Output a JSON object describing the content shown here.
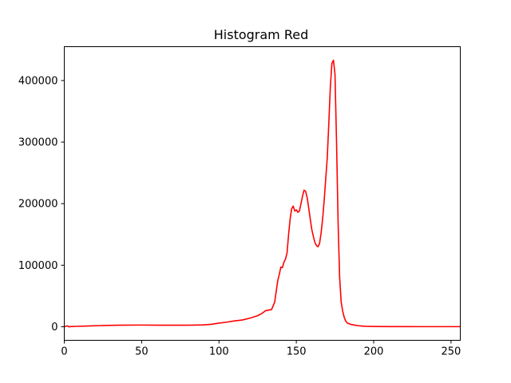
{
  "chart_data": {
    "type": "line",
    "title": "Histogram Red",
    "xlabel": "",
    "ylabel": "",
    "xlim": [
      0,
      256
    ],
    "ylim": [
      -22000,
      455000
    ],
    "xticks": [
      0,
      50,
      100,
      150,
      200,
      250
    ],
    "yticks": [
      0,
      100000,
      200000,
      300000,
      400000
    ],
    "xtick_labels": [
      "0",
      "50",
      "100",
      "150",
      "200",
      "250"
    ],
    "ytick_labels": [
      "0",
      "100000",
      "200000",
      "300000",
      "400000"
    ],
    "grid": false,
    "legend": "none",
    "series": [
      {
        "color": "#ff0000",
        "x": [
          0,
          2,
          3,
          5,
          8,
          15,
          25,
          35,
          50,
          60,
          70,
          80,
          90,
          95,
          100,
          105,
          110,
          115,
          120,
          125,
          128,
          130,
          132,
          134,
          136,
          138,
          139,
          140,
          141,
          142,
          143,
          144,
          145,
          146,
          147,
          148,
          149,
          150,
          151,
          152,
          153,
          154,
          155,
          156,
          157,
          158,
          159,
          160,
          161,
          162,
          163,
          164,
          165,
          166,
          167,
          168,
          169,
          170,
          171,
          172,
          173,
          174,
          175,
          176,
          177,
          178,
          179,
          180,
          181,
          182,
          183,
          184,
          185,
          186,
          187,
          188,
          190,
          192,
          195,
          200,
          210,
          220,
          230,
          240,
          250,
          256
        ],
        "y": [
          0,
          1500,
          0,
          500,
          700,
          1200,
          2000,
          2500,
          2800,
          2500,
          2500,
          2600,
          3000,
          4000,
          6000,
          7500,
          9500,
          11000,
          14000,
          18000,
          22000,
          26000,
          27000,
          28000,
          40000,
          75000,
          85000,
          97000,
          96000,
          105000,
          110000,
          120000,
          150000,
          175000,
          192000,
          196000,
          188000,
          190000,
          186000,
          188000,
          200000,
          212000,
          222000,
          220000,
          210000,
          193000,
          175000,
          158000,
          147000,
          137000,
          132000,
          130000,
          135000,
          152000,
          175000,
          205000,
          240000,
          275000,
          330000,
          390000,
          428000,
          433000,
          410000,
          300000,
          170000,
          80000,
          40000,
          25000,
          15000,
          9000,
          6000,
          5000,
          4000,
          3500,
          3000,
          2500,
          1800,
          1300,
          800,
          500,
          300,
          250,
          200,
          200,
          200,
          200
        ]
      }
    ]
  }
}
